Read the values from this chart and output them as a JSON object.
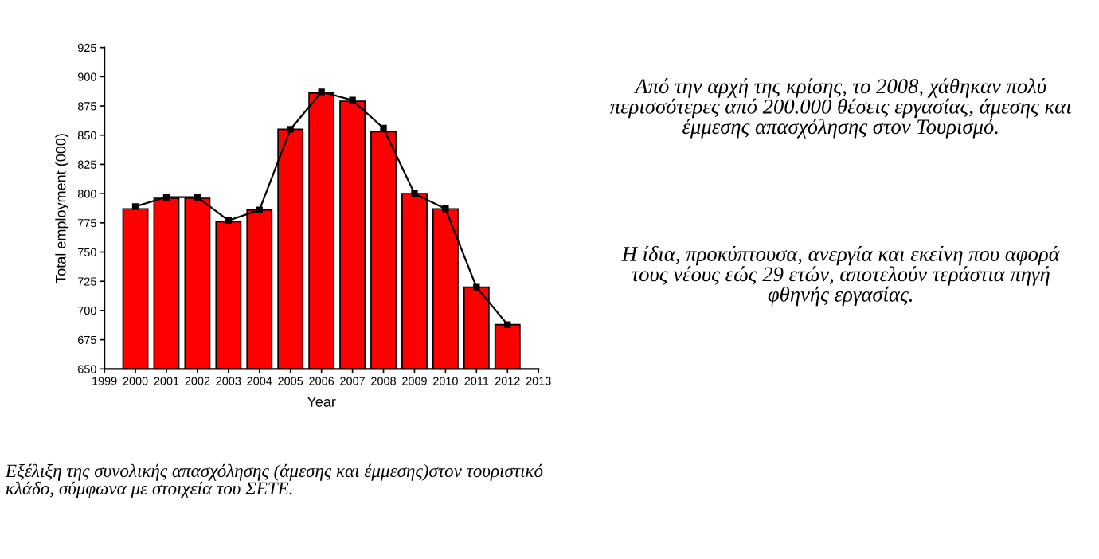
{
  "chart_data": {
    "type": "bar",
    "xlabel": "Year",
    "ylabel": "Total employment (000)",
    "x": [
      2000,
      2001,
      2002,
      2003,
      2004,
      2005,
      2006,
      2007,
      2008,
      2009,
      2010,
      2011,
      2012
    ],
    "series": [
      {
        "type": "bar",
        "color": "#ff0000",
        "values": [
          787,
          796,
          796,
          776,
          786,
          855,
          886,
          879,
          853,
          800,
          787,
          720,
          688
        ]
      },
      {
        "type": "line",
        "color": "#000000",
        "values": [
          789,
          797,
          797,
          777,
          786,
          855,
          887,
          880,
          856,
          800,
          787,
          720,
          688
        ]
      }
    ],
    "xlim": [
      1999,
      2013
    ],
    "xticks": [
      1999,
      2000,
      2001,
      2002,
      2003,
      2004,
      2005,
      2006,
      2007,
      2008,
      2009,
      2010,
      2011,
      2012,
      2013
    ],
    "ylim": [
      650,
      925
    ],
    "yticks": [
      650,
      675,
      700,
      725,
      750,
      775,
      800,
      825,
      850,
      875,
      900,
      925
    ],
    "grid": false,
    "legend": false,
    "marker": "square",
    "line_style": "solid",
    "annotations": [
      "Από την αρχή της κρίσης, το 2008, χάθηκαν πολύ περισσότερες από 200.000 θέσεις εργασίας, άμεσης και έμμεσης απασχόλησης στον Τουρισμό.",
      "Η ίδια, προκύπτουσα, ανεργία και εκείνη που αφορά τους νέους εώς 29 ετών, αποτελούν τεράστια πηγή φθηνής εργασίας.",
      "Εξέλιξη της συνολικής απασχόλησης (άμεσης και έμμεσης)στον τουριστικό κλάδο, σύμφωνα με στοιχεία του ΣΕΤΕ."
    ]
  }
}
